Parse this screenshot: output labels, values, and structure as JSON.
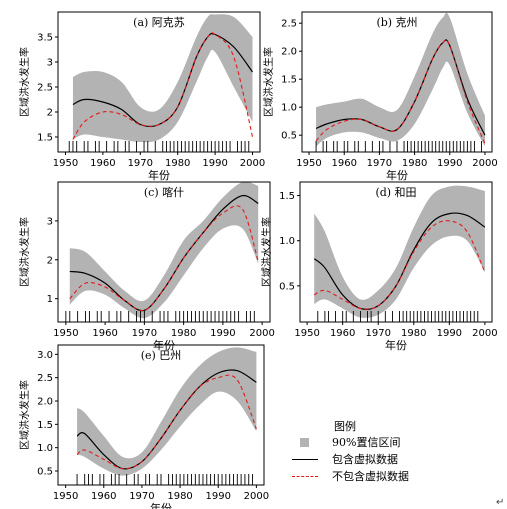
{
  "chart_data": [
    {
      "type": "line",
      "title": "(a) 阿克苏",
      "xlabel": "年份",
      "ylabel": "区域洪水发生率",
      "xlim": [
        1948,
        2002
      ],
      "ylim": [
        1.2,
        4.0
      ],
      "xticks": [
        1950,
        1960,
        1970,
        1980,
        1990,
        2000
      ],
      "yticks": [
        1.5,
        2.0,
        2.5,
        3.0,
        3.5
      ],
      "ytick_labels": [
        "1.5",
        "2",
        "2.5",
        "3",
        "3.5"
      ],
      "band": {
        "x": [
          1952,
          1955,
          1960,
          1965,
          1970,
          1975,
          1980,
          1985,
          1988,
          1990,
          1995,
          2000
        ],
        "low": [
          1.45,
          1.55,
          1.5,
          1.45,
          1.4,
          1.45,
          1.8,
          2.6,
          3.1,
          3.2,
          2.5,
          1.8
        ],
        "high": [
          2.7,
          2.8,
          2.8,
          2.6,
          2.1,
          2.05,
          2.6,
          3.5,
          3.9,
          3.95,
          3.9,
          3.5
        ]
      },
      "series": [
        {
          "name": "包含虚拟数据",
          "x": [
            1952,
            1955,
            1960,
            1965,
            1970,
            1975,
            1980,
            1985,
            1988,
            1990,
            1995,
            2000
          ],
          "y": [
            2.15,
            2.25,
            2.2,
            2.05,
            1.75,
            1.75,
            2.1,
            3.1,
            3.5,
            3.55,
            3.3,
            2.8
          ]
        },
        {
          "name": "不包含虚拟数据",
          "x": [
            1952,
            1955,
            1960,
            1965,
            1970,
            1975,
            1980,
            1985,
            1988,
            1990,
            1995,
            2000
          ],
          "y": [
            1.45,
            1.8,
            2.0,
            1.95,
            1.75,
            1.75,
            2.1,
            3.1,
            3.5,
            3.55,
            3.1,
            1.5
          ]
        }
      ],
      "rug": [
        1951,
        1952,
        1953,
        1955,
        1956,
        1958,
        1959,
        1961,
        1963,
        1964,
        1966,
        1967,
        1969,
        1971,
        1972,
        1974,
        1976,
        1977,
        1978,
        1979,
        1980,
        1981,
        1982,
        1983,
        1984,
        1985,
        1986,
        1987,
        1988,
        1989,
        1990,
        1991,
        1992,
        1993,
        1994,
        1996,
        1997,
        1998,
        1999
      ]
    },
    {
      "type": "line",
      "title": "(b) 克州",
      "xlabel": "年份",
      "ylabel": "区域洪水发生率",
      "xlim": [
        1948,
        2002
      ],
      "ylim": [
        0.2,
        2.7
      ],
      "xticks": [
        1950,
        1960,
        1970,
        1980,
        1990,
        2000
      ],
      "yticks": [
        0.5,
        1.0,
        1.5,
        2.0,
        2.5
      ],
      "ytick_labels": [
        "0.5",
        "1.0",
        "1.5",
        "2.0",
        "2.5"
      ],
      "band": {
        "x": [
          1952,
          1955,
          1960,
          1965,
          1970,
          1975,
          1980,
          1985,
          1988,
          1990,
          1995,
          2000
        ],
        "low": [
          0.3,
          0.45,
          0.55,
          0.55,
          0.45,
          0.4,
          0.7,
          1.3,
          1.7,
          1.75,
          0.9,
          0.3
        ],
        "high": [
          1.0,
          1.05,
          1.1,
          1.15,
          1.0,
          0.95,
          1.55,
          2.3,
          2.6,
          2.6,
          1.6,
          0.85
        ]
      },
      "series": [
        {
          "name": "包含虚拟数据",
          "x": [
            1952,
            1955,
            1960,
            1965,
            1970,
            1975,
            1980,
            1985,
            1988,
            1990,
            1995,
            2000
          ],
          "y": [
            0.62,
            0.7,
            0.78,
            0.78,
            0.65,
            0.6,
            1.1,
            1.85,
            2.15,
            2.1,
            1.15,
            0.5
          ]
        },
        {
          "name": "不包含虚拟数据",
          "x": [
            1952,
            1955,
            1960,
            1965,
            1970,
            1975,
            1980,
            1985,
            1988,
            1990,
            1995,
            2000
          ],
          "y": [
            0.4,
            0.6,
            0.75,
            0.78,
            0.65,
            0.6,
            1.1,
            1.85,
            2.15,
            2.1,
            1.1,
            0.35
          ]
        }
      ],
      "rug": [
        1952,
        1954,
        1955,
        1957,
        1958,
        1960,
        1961,
        1963,
        1964,
        1966,
        1968,
        1970,
        1971,
        1973,
        1975,
        1977,
        1978,
        1979,
        1980,
        1981,
        1982,
        1983,
        1984,
        1985,
        1986,
        1987,
        1988,
        1989,
        1990,
        1991,
        1992,
        1993,
        1994,
        1995,
        1996,
        1997,
        1999
      ]
    },
    {
      "type": "line",
      "title": "(c) 喀什",
      "xlabel": "年份",
      "ylabel": "区域洪水发生率",
      "xlim": [
        1948,
        2002
      ],
      "ylim": [
        0.4,
        4.0
      ],
      "xticks": [
        1950,
        1960,
        1970,
        1980,
        1990,
        2000
      ],
      "yticks": [
        1,
        2,
        3
      ],
      "ytick_labels": [
        "1",
        "2",
        "3"
      ],
      "band": {
        "x": [
          1951,
          1955,
          1960,
          1965,
          1970,
          1975,
          1980,
          1985,
          1990,
          1995,
          1999
        ],
        "low": [
          0.85,
          1.2,
          1.1,
          0.75,
          0.5,
          0.9,
          1.6,
          2.3,
          2.8,
          2.8,
          1.9
        ],
        "high": [
          2.3,
          2.2,
          1.7,
          1.2,
          0.95,
          1.6,
          2.5,
          3.0,
          3.6,
          4.0,
          3.9
        ]
      },
      "series": [
        {
          "name": "包含虚拟数据",
          "x": [
            1951,
            1955,
            1960,
            1965,
            1970,
            1975,
            1980,
            1985,
            1990,
            1995,
            1999
          ],
          "y": [
            1.7,
            1.65,
            1.4,
            0.95,
            0.7,
            1.25,
            2.05,
            2.7,
            3.3,
            3.65,
            3.45
          ]
        },
        {
          "name": "不包含虚拟数据",
          "x": [
            1951,
            1955,
            1960,
            1965,
            1970,
            1975,
            1980,
            1985,
            1990,
            1995,
            1999
          ],
          "y": [
            1.0,
            1.4,
            1.3,
            0.95,
            0.7,
            1.25,
            2.05,
            2.7,
            3.2,
            3.3,
            1.95
          ]
        }
      ],
      "rug": [
        1950,
        1951,
        1953,
        1955,
        1956,
        1958,
        1959,
        1961,
        1963,
        1964,
        1966,
        1968,
        1969,
        1970,
        1972,
        1974,
        1975,
        1976,
        1978,
        1979,
        1980,
        1981,
        1982,
        1983,
        1984,
        1985,
        1986,
        1987,
        1988,
        1989,
        1990,
        1991,
        1992,
        1993,
        1994,
        1996,
        1997,
        1998
      ]
    },
    {
      "type": "line",
      "title": "(d) 和田",
      "xlabel": "年份",
      "ylabel": "区域洪水发生率",
      "xlim": [
        1948,
        2002
      ],
      "ylim": [
        0.1,
        1.65
      ],
      "xticks": [
        1950,
        1960,
        1970,
        1980,
        1990,
        2000
      ],
      "yticks": [
        0.5,
        1.0,
        1.5
      ],
      "ytick_labels": [
        "0.5",
        "1.0",
        "1.5"
      ],
      "band": {
        "x": [
          1952,
          1955,
          1960,
          1965,
          1970,
          1975,
          1980,
          1985,
          1990,
          1995,
          2000
        ],
        "low": [
          0.3,
          0.35,
          0.25,
          0.15,
          0.18,
          0.35,
          0.7,
          0.95,
          1.05,
          1.0,
          0.65
        ],
        "high": [
          1.3,
          1.1,
          0.6,
          0.35,
          0.45,
          0.7,
          1.15,
          1.5,
          1.6,
          1.6,
          1.55
        ]
      },
      "series": [
        {
          "name": "包含虚拟数据",
          "x": [
            1952,
            1955,
            1960,
            1965,
            1970,
            1975,
            1980,
            1985,
            1990,
            1995,
            2000
          ],
          "y": [
            0.8,
            0.7,
            0.4,
            0.25,
            0.28,
            0.5,
            0.9,
            1.2,
            1.3,
            1.28,
            1.15
          ]
        },
        {
          "name": "不包含虚拟数据",
          "x": [
            1952,
            1955,
            1960,
            1965,
            1970,
            1975,
            1980,
            1985,
            1990,
            1995,
            2000
          ],
          "y": [
            0.4,
            0.45,
            0.35,
            0.25,
            0.28,
            0.5,
            0.88,
            1.15,
            1.22,
            1.1,
            0.65
          ]
        }
      ],
      "rug": [
        1953,
        1955,
        1956,
        1958,
        1960,
        1961,
        1963,
        1965,
        1967,
        1968,
        1970,
        1972,
        1974,
        1976,
        1977,
        1978,
        1979,
        1980,
        1981,
        1982,
        1983,
        1984,
        1985,
        1986,
        1987,
        1988,
        1989,
        1990,
        1991,
        1992,
        1993,
        1994,
        1995,
        1996,
        1997,
        1998
      ]
    },
    {
      "type": "line",
      "title": "(e) 巴州",
      "xlabel": "年份",
      "ylabel": "区域洪水发生率",
      "xlim": [
        1948,
        2002
      ],
      "ylim": [
        0.2,
        3.2
      ],
      "xticks": [
        1950,
        1960,
        1970,
        1980,
        1990,
        2000
      ],
      "yticks": [
        0.5,
        1.0,
        1.5,
        2.0,
        2.5,
        3.0
      ],
      "ytick_labels": [
        "0.5",
        "1.0",
        "1.5",
        "2.0",
        "2.5",
        "3.0"
      ],
      "band": {
        "x": [
          1953,
          1955,
          1960,
          1965,
          1970,
          1975,
          1980,
          1985,
          1990,
          1995,
          2000
        ],
        "low": [
          0.85,
          0.8,
          0.55,
          0.4,
          0.55,
          0.95,
          1.45,
          1.9,
          2.2,
          2.0,
          1.35
        ],
        "high": [
          1.85,
          1.75,
          1.25,
          0.8,
          0.9,
          1.55,
          2.25,
          2.75,
          3.05,
          3.15,
          3.05
        ]
      },
      "series": [
        {
          "name": "包含虚拟数据",
          "x": [
            1953,
            1955,
            1960,
            1965,
            1970,
            1975,
            1980,
            1985,
            1990,
            1995,
            2000
          ],
          "y": [
            1.25,
            1.3,
            0.85,
            0.55,
            0.7,
            1.2,
            1.8,
            2.3,
            2.6,
            2.65,
            2.4
          ]
        },
        {
          "name": "不包含虚拟数据",
          "x": [
            1953,
            1955,
            1960,
            1965,
            1970,
            1975,
            1980,
            1985,
            1990,
            1995,
            2000
          ],
          "y": [
            0.85,
            0.95,
            0.75,
            0.55,
            0.7,
            1.2,
            1.8,
            2.3,
            2.5,
            2.45,
            1.4
          ]
        }
      ],
      "rug": [
        1953,
        1955,
        1956,
        1957,
        1959,
        1960,
        1962,
        1963,
        1964,
        1966,
        1968,
        1969,
        1971,
        1972,
        1974,
        1975,
        1977,
        1978,
        1979,
        1980,
        1981,
        1982,
        1983,
        1984,
        1985,
        1986,
        1987,
        1988,
        1989,
        1990,
        1991,
        1992,
        1993,
        1994,
        1995,
        1996,
        1997,
        1998,
        1999
      ]
    }
  ],
  "legend": {
    "title": "图例",
    "items": [
      {
        "label": "90%置信区间",
        "color": "#b3b3b3"
      },
      {
        "label": "包含虚拟数据",
        "color": "#000000"
      },
      {
        "label": "不包含虚拟数据",
        "color": "#e31a1c"
      }
    ]
  },
  "corner_mark": "↵"
}
